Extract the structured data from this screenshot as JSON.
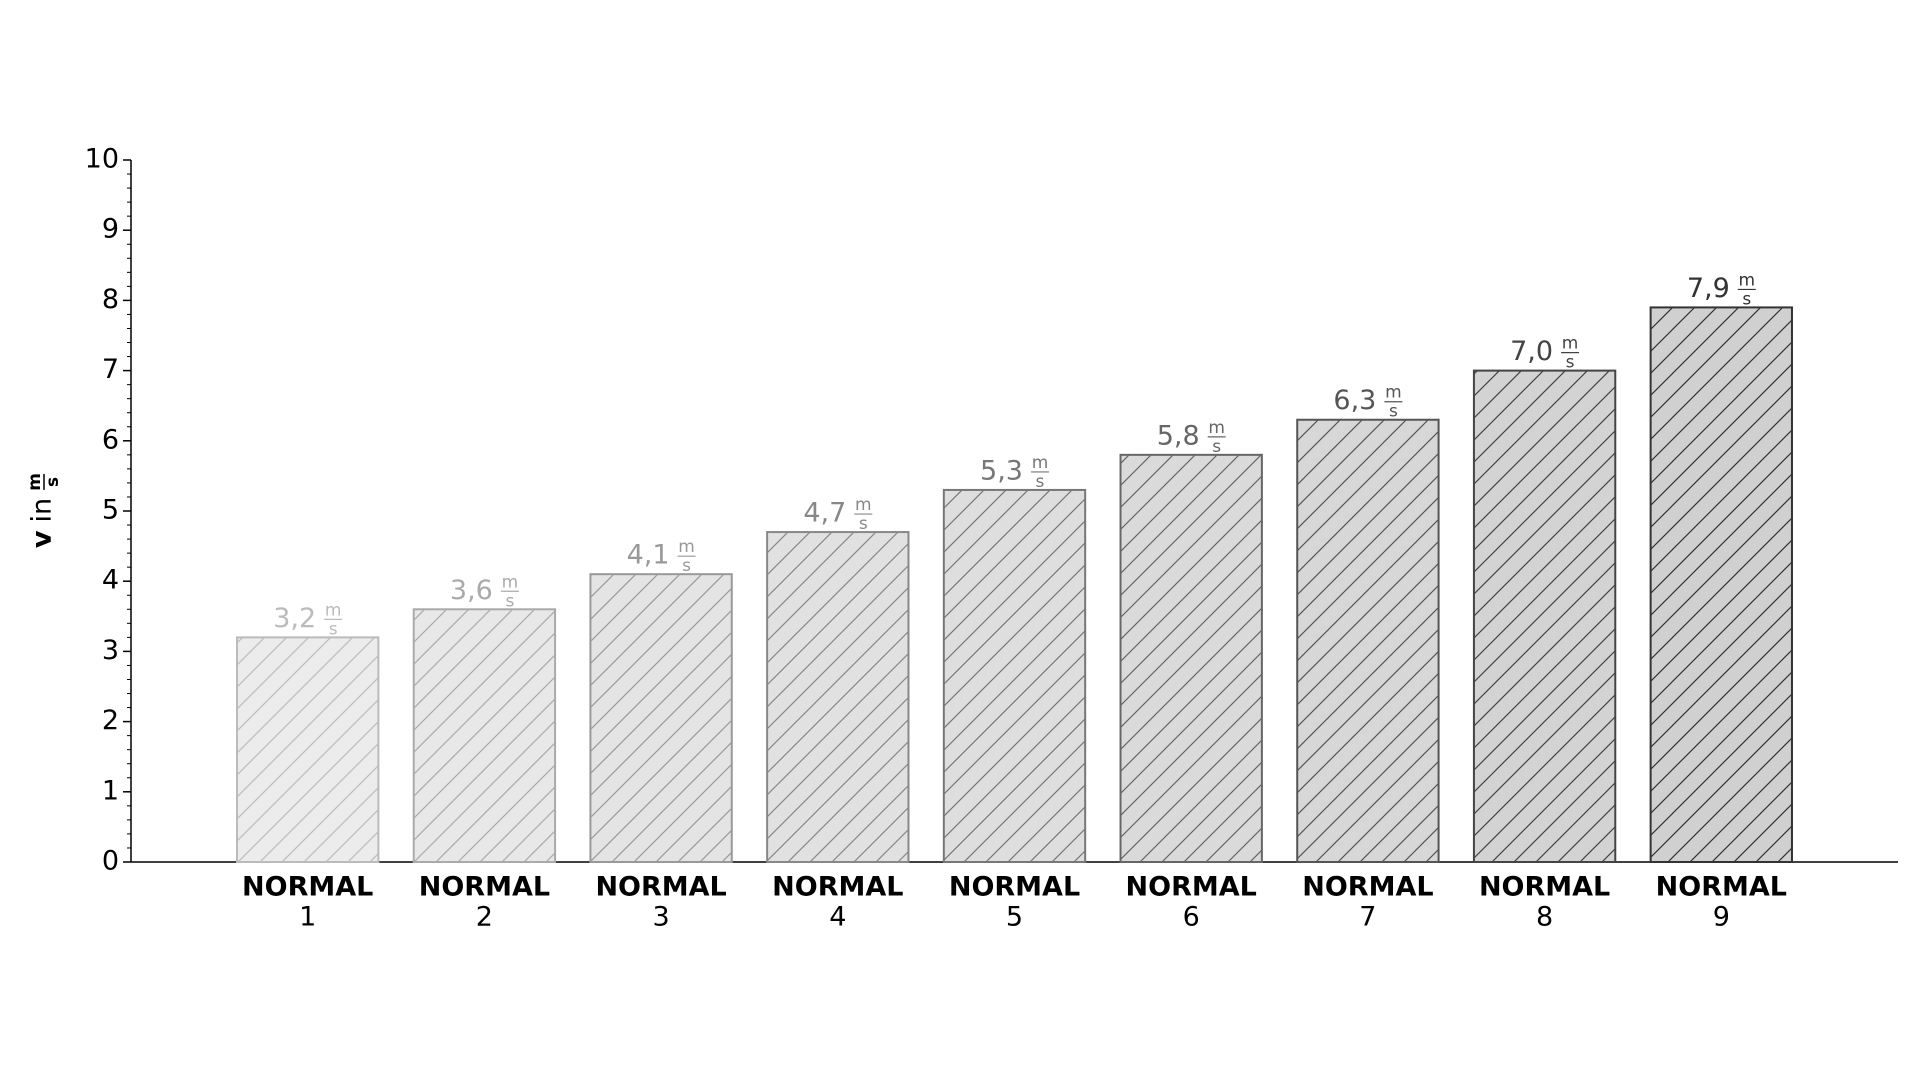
{
  "chart_data": {
    "type": "bar",
    "ylabel": {
      "symbol": "v",
      "word": "in",
      "unit_numerator": "m",
      "unit_denominator": "s"
    },
    "categories": [
      [
        "NORMAL",
        "1"
      ],
      [
        "NORMAL",
        "2"
      ],
      [
        "NORMAL",
        "3"
      ],
      [
        "NORMAL",
        "4"
      ],
      [
        "NORMAL",
        "5"
      ],
      [
        "NORMAL",
        "6"
      ],
      [
        "NORMAL",
        "7"
      ],
      [
        "NORMAL",
        "8"
      ],
      [
        "NORMAL",
        "9"
      ]
    ],
    "values": [
      3.2,
      3.6,
      4.1,
      4.7,
      5.3,
      5.8,
      6.3,
      7.0,
      7.9
    ],
    "value_labels": [
      "3,2",
      "3,6",
      "4,1",
      "4,7",
      "5,3",
      "5,8",
      "6,3",
      "7,0",
      "7,9"
    ],
    "value_unit": {
      "numerator": "m",
      "denominator": "s"
    },
    "colors": [
      "#ececec",
      "#e8e8e8",
      "#e4e4e4",
      "#e1e1e1",
      "#dedede",
      "#dadada",
      "#d7d7d7",
      "#d3d3d3",
      "#d0d0d0"
    ],
    "edge_colors": [
      "#bbbbbb",
      "#aaaaaa",
      "#999999",
      "#888888",
      "#777777",
      "#666666",
      "#555555",
      "#444444",
      "#333333"
    ],
    "hatch": "/",
    "ylim": [
      0,
      10
    ],
    "yticks": [
      0,
      1,
      2,
      3,
      4,
      5,
      6,
      7,
      8,
      9,
      10
    ],
    "yminorticks": [
      0.2,
      0.4,
      0.6,
      0.8,
      1.2,
      1.4,
      1.6,
      1.8,
      2.2,
      2.4,
      2.6,
      2.8,
      3.2,
      3.4,
      3.6,
      3.8,
      4.2,
      4.4,
      4.6,
      4.8,
      5.2,
      5.4,
      5.6,
      5.8,
      6.2,
      6.4,
      6.6,
      6.8,
      7.2,
      7.4,
      7.6,
      7.8,
      8.2,
      8.4,
      8.6,
      8.8,
      9.2,
      9.4,
      9.6,
      9.8
    ],
    "grid": false
  }
}
